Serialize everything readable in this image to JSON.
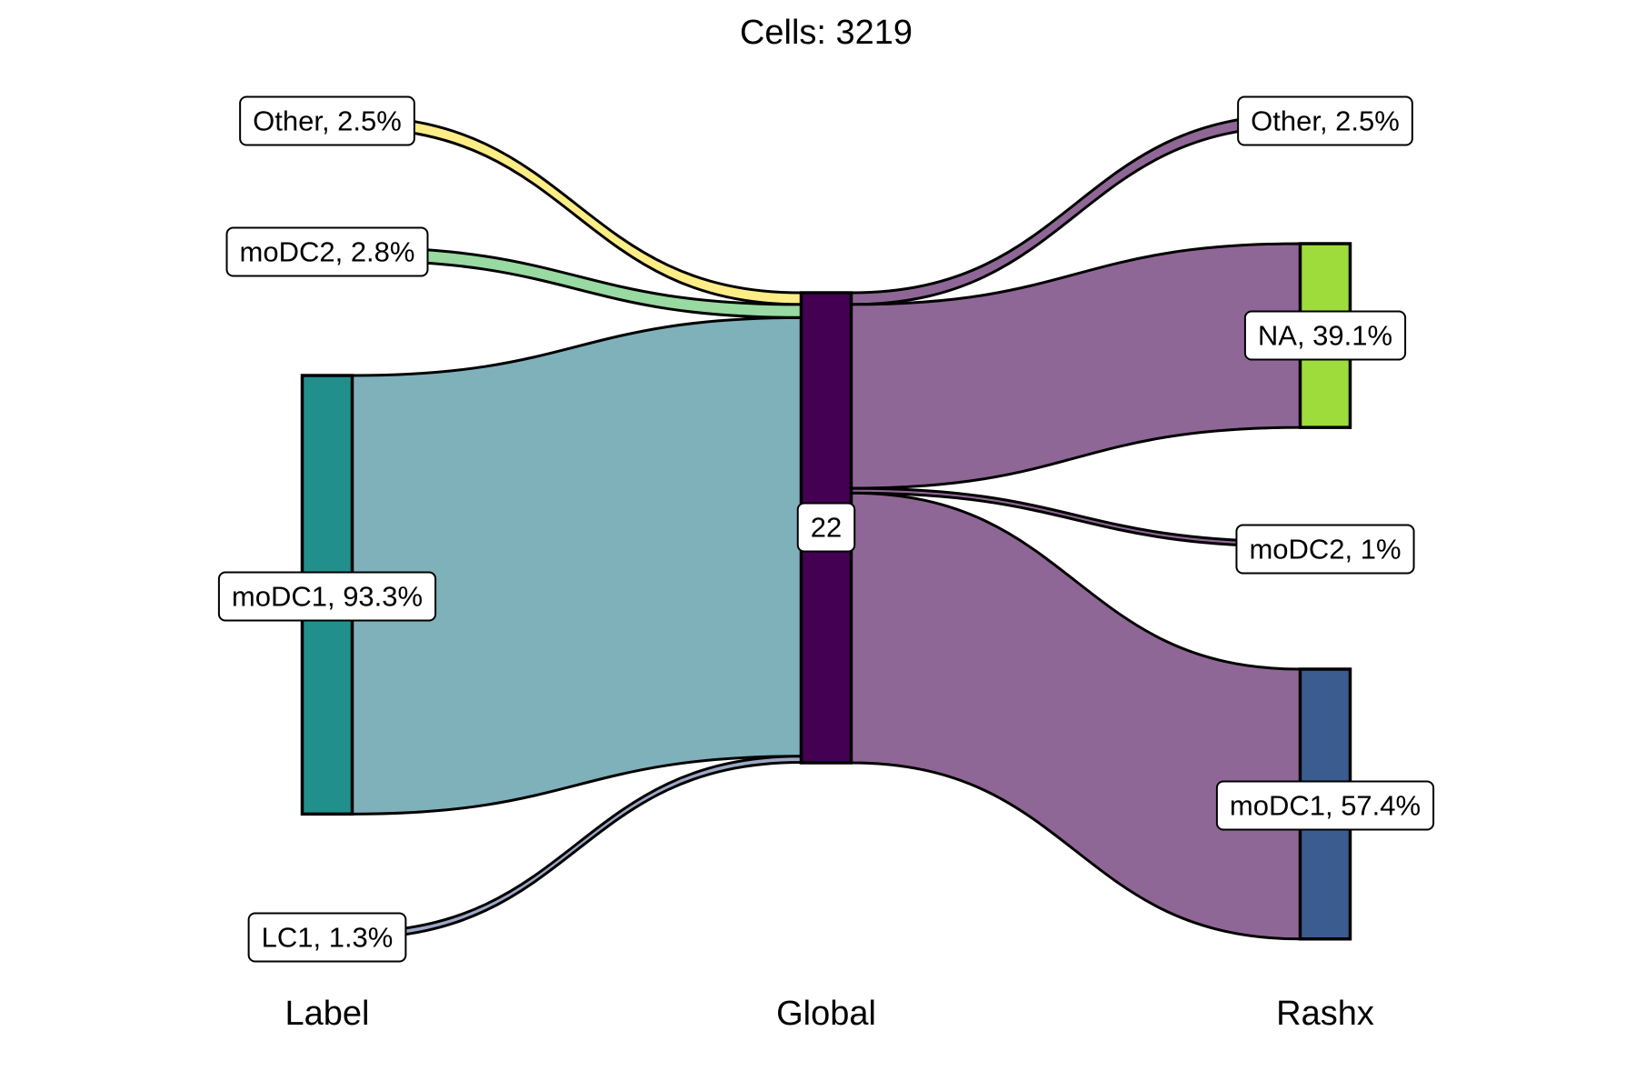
{
  "chart_data": {
    "type": "sankey",
    "title": "Cells:  3219",
    "axes": [
      "Label",
      "Global",
      "Rashx"
    ],
    "nodes": [
      {
        "id": "L_other",
        "axis": "Label",
        "label": "Other, 2.5%",
        "percent": 2.5,
        "color": "#FDE725"
      },
      {
        "id": "L_modc2",
        "axis": "Label",
        "label": "moDC2, 2.8%",
        "percent": 2.8,
        "color": "#5EC962"
      },
      {
        "id": "L_modc1",
        "axis": "Label",
        "label": "moDC1, 93.3%",
        "percent": 93.3,
        "color": "#21908C"
      },
      {
        "id": "L_lc1",
        "axis": "Label",
        "label": "LC1, 1.3%",
        "percent": 1.3,
        "color": "#3B528B"
      },
      {
        "id": "G_22",
        "axis": "Global",
        "label": "22",
        "percent": 100,
        "color": "#440154"
      },
      {
        "id": "R_other",
        "axis": "Rashx",
        "label": "Other, 2.5%",
        "percent": 2.5,
        "color": "#440154"
      },
      {
        "id": "R_na",
        "axis": "Rashx",
        "label": "NA, 39.1%",
        "percent": 39.1,
        "color": "#9EDC3C"
      },
      {
        "id": "R_modc2",
        "axis": "Rashx",
        "label": "moDC2, 1%",
        "percent": 1.0,
        "color": "#21908C"
      },
      {
        "id": "R_modc1",
        "axis": "Rashx",
        "label": "moDC1, 57.4%",
        "percent": 57.4,
        "color": "#3A5C8F"
      }
    ],
    "links": [
      {
        "source": "L_other",
        "target": "G_22",
        "percent": 2.5,
        "color": "#FDED86"
      },
      {
        "source": "L_modc2",
        "target": "G_22",
        "percent": 2.8,
        "color": "#98DAA1"
      },
      {
        "source": "L_modc1",
        "target": "G_22",
        "percent": 93.3,
        "color": "#7FB1BB"
      },
      {
        "source": "L_lc1",
        "target": "G_22",
        "percent": 1.3,
        "color": "#9DA8C5"
      },
      {
        "source": "G_22",
        "target": "R_other",
        "percent": 2.5,
        "color": "#8F6796"
      },
      {
        "source": "G_22",
        "target": "R_na",
        "percent": 39.1,
        "color": "#8F6796"
      },
      {
        "source": "G_22",
        "target": "R_modc2",
        "percent": 1.0,
        "color": "#8F6796"
      },
      {
        "source": "G_22",
        "target": "R_modc1",
        "percent": 57.4,
        "color": "#8F6796"
      }
    ]
  }
}
